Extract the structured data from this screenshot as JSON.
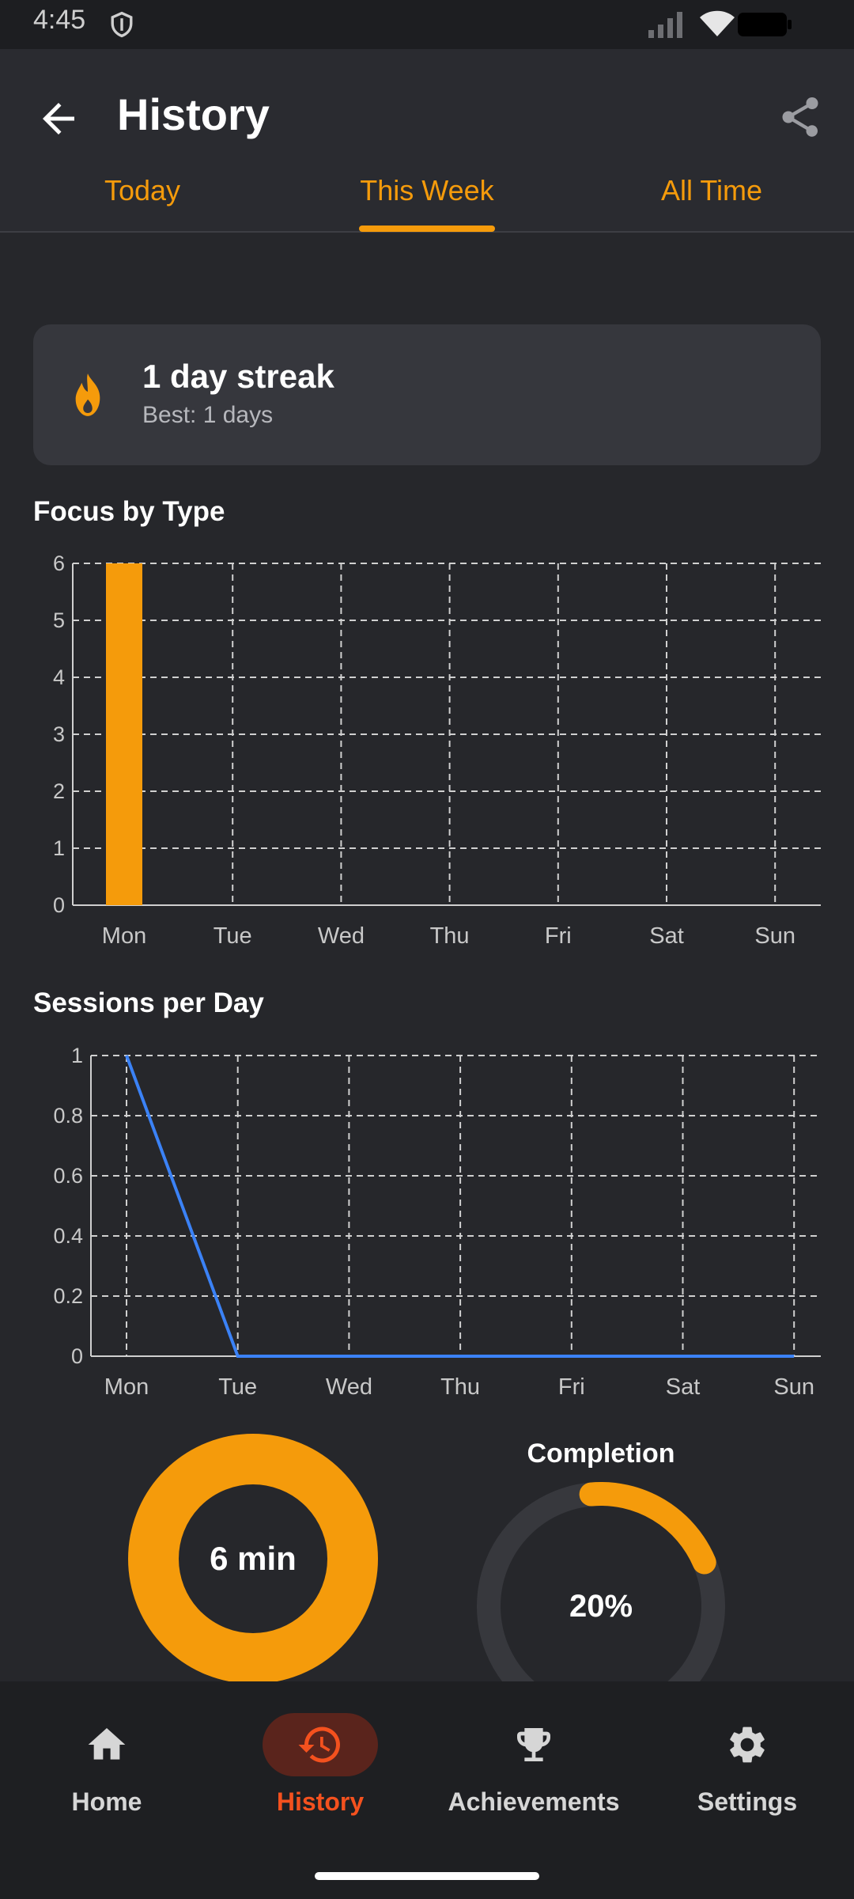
{
  "status_bar": {
    "time": "4:45"
  },
  "app_bar": {
    "title": "History"
  },
  "tabs": [
    {
      "label": "Today"
    },
    {
      "label": "This Week"
    },
    {
      "label": "All Time"
    }
  ],
  "selected_tab": "This Week",
  "streak": {
    "title": "1 day streak",
    "best": "Best: 1 days"
  },
  "focus_chart": {
    "title": "Focus by Type"
  },
  "sessions_chart": {
    "title": "Sessions per Day"
  },
  "summary": {
    "total_time": "6 min",
    "completion_title": "Completion",
    "completion_value": "20%"
  },
  "bottom_nav": [
    {
      "label": "Home",
      "icon": "home-icon"
    },
    {
      "label": "History",
      "icon": "history-icon"
    },
    {
      "label": "Achievements",
      "icon": "trophy-icon"
    },
    {
      "label": "Settings",
      "icon": "gear-icon"
    }
  ],
  "colors": {
    "accent": "#f59b0b",
    "line": "#3b82f6",
    "active_nav": "#f4511e"
  },
  "chart_data": [
    {
      "type": "bar",
      "title": "Focus by Type",
      "categories": [
        "Mon",
        "Tue",
        "Wed",
        "Thu",
        "Fri",
        "Sat",
        "Sun"
      ],
      "values": [
        6,
        0,
        0,
        0,
        0,
        0,
        0
      ],
      "yticks": [
        "0",
        "1",
        "2",
        "3",
        "4",
        "5",
        "6"
      ],
      "ylim": [
        0,
        6
      ],
      "grid": true
    },
    {
      "type": "line",
      "title": "Sessions per Day",
      "categories": [
        "Mon",
        "Tue",
        "Wed",
        "Thu",
        "Fri",
        "Sat",
        "Sun"
      ],
      "values": [
        1,
        0,
        0,
        0,
        0,
        0,
        0
      ],
      "yticks": [
        "0",
        "0.2",
        "0.4",
        "0.6",
        "0.8",
        "1"
      ],
      "ylim": [
        0,
        1
      ],
      "grid": true
    },
    {
      "type": "pie",
      "slices": [
        {
          "value": 1
        }
      ],
      "center_label": "6 min"
    },
    {
      "type": "pie",
      "title": "Completion",
      "values": [
        20,
        80
      ],
      "center_label": "20%"
    }
  ]
}
